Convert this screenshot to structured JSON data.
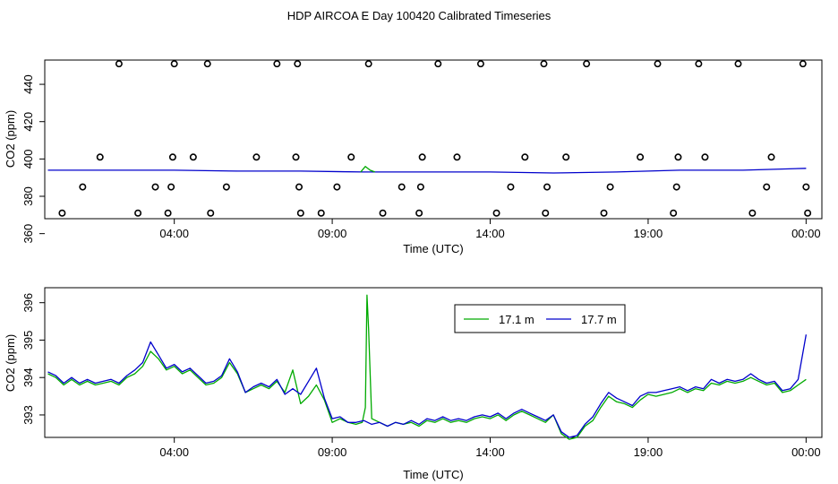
{
  "title": "HDP AIRCOA E  Day 100420  Calibrated Timeseries",
  "chart_data": [
    {
      "type": "line",
      "title": "",
      "xlabel": "Time (UTC)",
      "ylabel": "CO2 (ppm)",
      "x_unit": "hours since 00:00 UTC",
      "xlim": [
        -0.1,
        24.5
      ],
      "ylim": [
        368,
        453
      ],
      "xticks": [
        4,
        9,
        14,
        19,
        24
      ],
      "xtick_labels": [
        "04:00",
        "09:00",
        "14:00",
        "19:00",
        "00:00"
      ],
      "yticks": [
        360,
        380,
        400,
        420,
        440
      ],
      "ytick_labels": [
        "360",
        "380",
        "400",
        "420",
        "440"
      ],
      "grid": false,
      "legend": "none",
      "series": [
        {
          "kind": "points",
          "color": "#000000",
          "x": [
            0.45,
            1.1,
            1.65,
            2.25,
            2.85,
            3.4,
            3.8,
            3.9,
            3.95,
            4.0,
            4.6,
            5.05,
            5.15,
            5.65,
            6.6,
            7.25,
            7.85,
            7.9,
            7.95,
            8.0,
            8.65,
            9.15,
            9.6,
            10.15,
            10.6,
            11.2,
            11.75,
            11.8,
            11.85,
            12.35,
            12.95,
            13.7,
            14.2,
            14.65,
            15.1,
            15.7,
            15.75,
            15.8,
            16.4,
            17.05,
            17.6,
            17.8,
            18.75,
            19.3,
            19.8,
            19.9,
            19.95,
            20.6,
            20.8,
            21.85,
            22.3,
            22.75,
            22.9,
            23.9,
            24.0,
            24.05
          ],
          "y": [
            371,
            385,
            401,
            451,
            371,
            385,
            371,
            385,
            401,
            451,
            401,
            451,
            371,
            385,
            401,
            451,
            401,
            451,
            385,
            371,
            371,
            385,
            401,
            451,
            371,
            385,
            371,
            385,
            401,
            451,
            401,
            451,
            371,
            385,
            401,
            451,
            371,
            385,
            401,
            451,
            371,
            385,
            401,
            451,
            371,
            385,
            401,
            451,
            401,
            451,
            371,
            385,
            401,
            451,
            385,
            371
          ]
        },
        {
          "name": "17.7 m",
          "color": "#0000cc",
          "x": [
            0,
            2,
            4,
            6,
            8,
            10,
            12,
            14,
            16,
            18,
            20,
            22,
            24
          ],
          "y": [
            394,
            394,
            394,
            393.5,
            393.5,
            393,
            393,
            393,
            392.5,
            393,
            394,
            394,
            395
          ]
        },
        {
          "name": "17.1 m",
          "color": "#00aa00",
          "x": [
            9.9,
            10.05,
            10.2,
            10.35
          ],
          "y": [
            393,
            396,
            394,
            393
          ]
        }
      ]
    },
    {
      "type": "line",
      "title": "",
      "xlabel": "Time (UTC)",
      "ylabel": "CO2 (ppm)",
      "x_unit": "hours since 00:00 UTC",
      "xlim": [
        -0.1,
        24.5
      ],
      "ylim": [
        392.4,
        396.4
      ],
      "xticks": [
        4,
        9,
        14,
        19,
        24
      ],
      "xtick_labels": [
        "04:00",
        "09:00",
        "14:00",
        "19:00",
        "00:00"
      ],
      "yticks": [
        393,
        394,
        395,
        396
      ],
      "ytick_labels": [
        "393",
        "394",
        "395",
        "396"
      ],
      "grid": false,
      "legend": "top-center",
      "series": [
        {
          "name": "17.1 m",
          "color": "#00aa00",
          "x": [
            0,
            0.25,
            0.5,
            0.75,
            1.0,
            1.25,
            1.5,
            1.75,
            2.0,
            2.25,
            2.5,
            2.75,
            3.0,
            3.25,
            3.5,
            3.75,
            4.0,
            4.25,
            4.5,
            4.75,
            5.0,
            5.25,
            5.5,
            5.75,
            6.0,
            6.25,
            6.5,
            6.75,
            7.0,
            7.25,
            7.5,
            7.75,
            8.0,
            8.25,
            8.5,
            8.75,
            9.0,
            9.25,
            9.5,
            9.75,
            9.95,
            10.05,
            10.1,
            10.15,
            10.25,
            10.5,
            10.75,
            11.0,
            11.25,
            11.5,
            11.75,
            12.0,
            12.25,
            12.5,
            12.75,
            13.0,
            13.25,
            13.5,
            13.75,
            14.0,
            14.25,
            14.5,
            14.75,
            15.0,
            15.25,
            15.5,
            15.75,
            16.0,
            16.25,
            16.5,
            16.75,
            17.0,
            17.25,
            17.5,
            17.75,
            18.0,
            18.25,
            18.5,
            18.75,
            19.0,
            19.25,
            19.5,
            19.75,
            20.0,
            20.25,
            20.5,
            20.75,
            21.0,
            21.25,
            21.5,
            21.75,
            22.0,
            22.25,
            22.5,
            22.75,
            23.0,
            23.25,
            23.5,
            23.75,
            24.0
          ],
          "y": [
            394.1,
            394.0,
            393.8,
            393.95,
            393.8,
            393.9,
            393.8,
            393.85,
            393.9,
            393.8,
            394.0,
            394.1,
            394.3,
            394.7,
            394.5,
            394.2,
            394.3,
            394.1,
            394.2,
            394.0,
            393.8,
            393.85,
            394.0,
            394.4,
            394.1,
            393.6,
            393.7,
            393.8,
            393.7,
            393.9,
            393.6,
            394.2,
            393.3,
            393.5,
            393.8,
            393.4,
            392.8,
            392.9,
            392.8,
            392.75,
            392.8,
            393.2,
            396.2,
            395.3,
            392.9,
            392.8,
            392.7,
            392.8,
            392.75,
            392.8,
            392.7,
            392.85,
            392.8,
            392.9,
            392.8,
            392.85,
            392.8,
            392.9,
            392.95,
            392.9,
            393.0,
            392.85,
            393.0,
            393.1,
            393.0,
            392.9,
            392.8,
            393.0,
            392.5,
            392.35,
            392.4,
            392.7,
            392.85,
            393.2,
            393.5,
            393.35,
            393.3,
            393.2,
            393.4,
            393.55,
            393.5,
            393.55,
            393.6,
            393.7,
            393.6,
            393.7,
            393.65,
            393.85,
            393.8,
            393.9,
            393.85,
            393.9,
            394.0,
            393.9,
            393.8,
            393.85,
            393.6,
            393.65,
            393.8,
            393.95
          ]
        },
        {
          "name": "17.7 m",
          "color": "#0000cc",
          "x": [
            0,
            0.25,
            0.5,
            0.75,
            1.0,
            1.25,
            1.5,
            1.75,
            2.0,
            2.25,
            2.5,
            2.75,
            3.0,
            3.25,
            3.5,
            3.75,
            4.0,
            4.25,
            4.5,
            4.75,
            5.0,
            5.25,
            5.5,
            5.75,
            6.0,
            6.25,
            6.5,
            6.75,
            7.0,
            7.25,
            7.5,
            7.75,
            8.0,
            8.25,
            8.5,
            8.75,
            9.0,
            9.25,
            9.5,
            9.75,
            10.0,
            10.25,
            10.5,
            10.75,
            11.0,
            11.25,
            11.5,
            11.75,
            12.0,
            12.25,
            12.5,
            12.75,
            13.0,
            13.25,
            13.5,
            13.75,
            14.0,
            14.25,
            14.5,
            14.75,
            15.0,
            15.25,
            15.5,
            15.75,
            16.0,
            16.25,
            16.5,
            16.75,
            17.0,
            17.25,
            17.5,
            17.75,
            18.0,
            18.25,
            18.5,
            18.75,
            19.0,
            19.25,
            19.5,
            19.75,
            20.0,
            20.25,
            20.5,
            20.75,
            21.0,
            21.25,
            21.5,
            21.75,
            22.0,
            22.25,
            22.5,
            22.75,
            23.0,
            23.25,
            23.5,
            23.75,
            24.0
          ],
          "y": [
            394.15,
            394.05,
            393.85,
            394.0,
            393.85,
            393.95,
            393.85,
            393.9,
            393.95,
            393.85,
            394.05,
            394.2,
            394.4,
            394.95,
            394.6,
            394.25,
            394.35,
            394.15,
            394.25,
            394.05,
            393.85,
            393.9,
            394.05,
            394.5,
            394.15,
            393.6,
            393.75,
            393.85,
            393.75,
            393.95,
            393.55,
            393.7,
            393.55,
            393.9,
            394.25,
            393.45,
            392.9,
            392.95,
            392.8,
            392.8,
            392.85,
            392.75,
            392.8,
            392.7,
            392.8,
            392.75,
            392.85,
            392.75,
            392.9,
            392.85,
            392.95,
            392.85,
            392.9,
            392.85,
            392.95,
            393.0,
            392.95,
            393.05,
            392.9,
            393.05,
            393.15,
            393.05,
            392.95,
            392.85,
            393.0,
            392.55,
            392.4,
            392.45,
            392.75,
            392.95,
            393.3,
            393.6,
            393.45,
            393.35,
            393.25,
            393.5,
            393.6,
            393.6,
            393.65,
            393.7,
            393.75,
            393.65,
            393.75,
            393.7,
            393.95,
            393.85,
            393.95,
            393.9,
            393.95,
            394.1,
            393.95,
            393.85,
            393.9,
            393.65,
            393.7,
            393.95,
            395.15
          ]
        }
      ]
    }
  ]
}
